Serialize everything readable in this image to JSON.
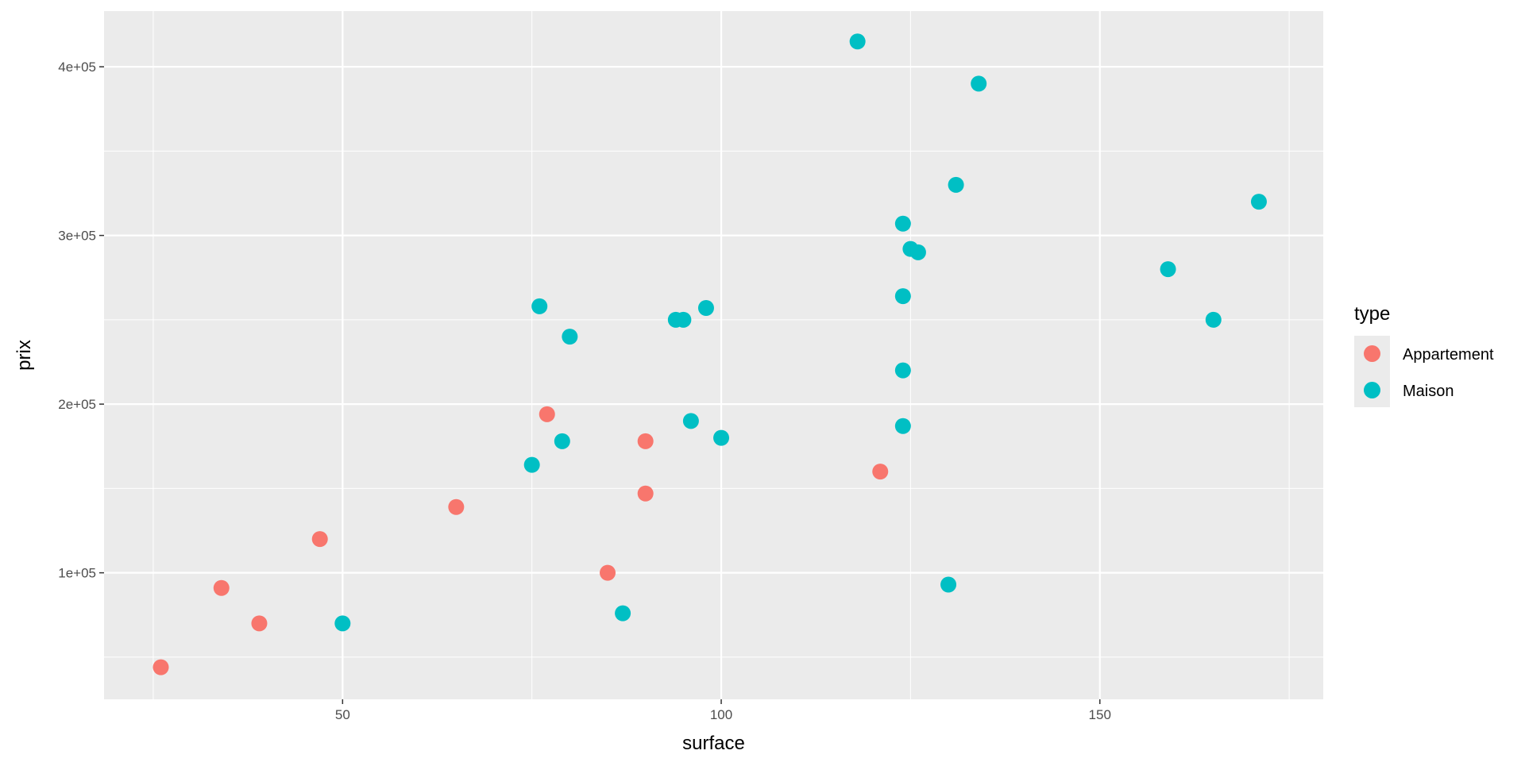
{
  "chart_data": {
    "type": "scatter",
    "title": "",
    "xlabel": "surface",
    "ylabel": "prix",
    "xlim": [
      18.5,
      179.5
    ],
    "ylim": [
      25000,
      433000
    ],
    "x_ticks": [
      50,
      100,
      150
    ],
    "x_tick_labels": [
      "50",
      "100",
      "150"
    ],
    "x_minor_ticks": [
      25,
      75,
      125,
      175
    ],
    "y_ticks": [
      100000,
      200000,
      300000,
      400000
    ],
    "y_tick_labels": [
      "1e+05",
      "2e+05",
      "3e+05",
      "4e+05"
    ],
    "y_minor_ticks": [
      50000,
      150000,
      250000,
      350000
    ],
    "grid": true,
    "legend": {
      "title": "type",
      "position": "right"
    },
    "series": [
      {
        "name": "Appartement",
        "color": "#F8766D",
        "points": [
          [
            26,
            44000
          ],
          [
            34,
            91000
          ],
          [
            39,
            70000
          ],
          [
            47,
            120000
          ],
          [
            65,
            139000
          ],
          [
            77,
            194000
          ],
          [
            85,
            100000
          ],
          [
            90,
            178000
          ],
          [
            90,
            147000
          ],
          [
            121,
            160000
          ]
        ]
      },
      {
        "name": "Maison",
        "color": "#00BFC4",
        "points": [
          [
            50,
            70000
          ],
          [
            75,
            164000
          ],
          [
            76,
            258000
          ],
          [
            79,
            178000
          ],
          [
            80,
            240000
          ],
          [
            87,
            76000
          ],
          [
            94,
            250000
          ],
          [
            95,
            250000
          ],
          [
            96,
            190000
          ],
          [
            98,
            257000
          ],
          [
            100,
            180000
          ],
          [
            118,
            415000
          ],
          [
            124,
            307000
          ],
          [
            124,
            264000
          ],
          [
            124,
            220000
          ],
          [
            124,
            187000
          ],
          [
            125,
            292000
          ],
          [
            126,
            290000
          ],
          [
            130,
            93000
          ],
          [
            131,
            330000
          ],
          [
            134,
            390000
          ],
          [
            159,
            280000
          ],
          [
            165,
            250000
          ],
          [
            171,
            320000
          ]
        ]
      }
    ]
  }
}
